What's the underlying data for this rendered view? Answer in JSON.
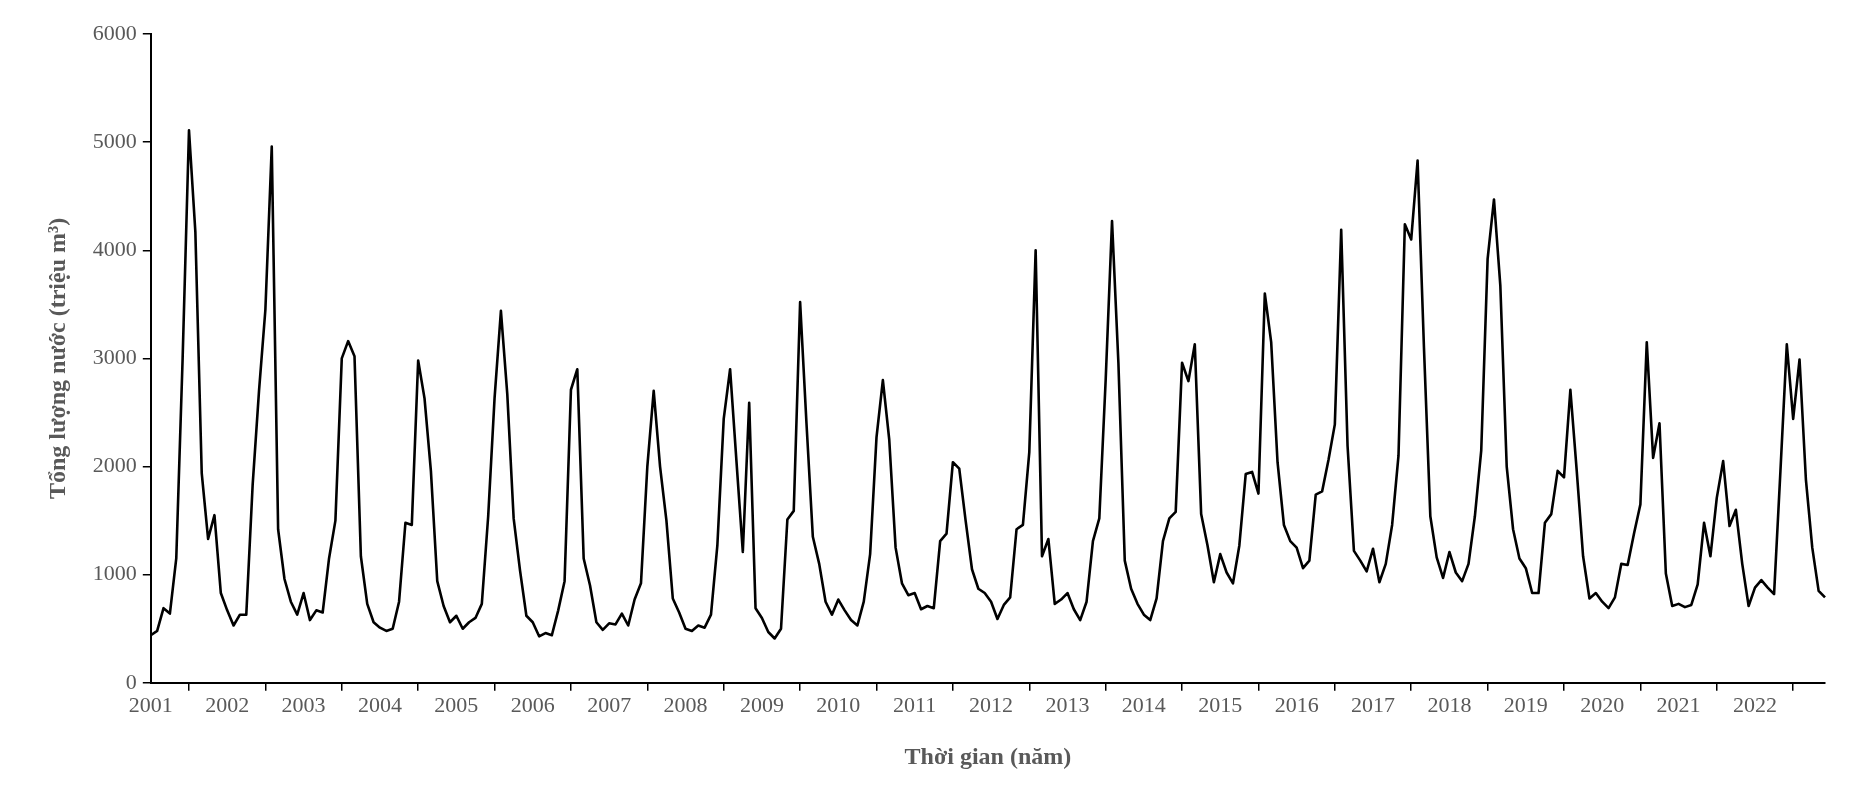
{
  "chart_data": {
    "type": "line",
    "xlabel": "Thời gian (năm)",
    "ylabel": "Tổng lượng nước (triệu m³)",
    "categories": [
      "2001",
      null,
      null,
      null,
      null,
      null,
      null,
      null,
      null,
      null,
      null,
      null,
      "2002",
      null,
      null,
      null,
      null,
      null,
      null,
      null,
      null,
      null,
      null,
      null,
      "2003",
      null,
      null,
      null,
      null,
      null,
      null,
      null,
      null,
      null,
      null,
      null,
      "2004",
      null,
      null,
      null,
      null,
      null,
      null,
      null,
      null,
      null,
      null,
      null,
      "2005",
      null,
      null,
      null,
      null,
      null,
      null,
      null,
      null,
      null,
      null,
      null,
      "2006",
      null,
      null,
      null,
      null,
      null,
      null,
      null,
      null,
      null,
      null,
      null,
      "2007",
      null,
      null,
      null,
      null,
      null,
      null,
      null,
      null,
      null,
      null,
      null,
      "2008",
      null,
      null,
      null,
      null,
      null,
      null,
      null,
      null,
      null,
      null,
      null,
      "2009",
      null,
      null,
      null,
      null,
      null,
      null,
      null,
      null,
      null,
      null,
      null,
      "2010",
      null,
      null,
      null,
      null,
      null,
      null,
      null,
      null,
      null,
      null,
      null,
      "2011",
      null,
      null,
      null,
      null,
      null,
      null,
      null,
      null,
      null,
      null,
      null,
      "2012",
      null,
      null,
      null,
      null,
      null,
      null,
      null,
      null,
      null,
      null,
      null,
      "2013",
      null,
      null,
      null,
      null,
      null,
      null,
      null,
      null,
      null,
      null,
      null,
      "2014",
      null,
      null,
      null,
      null,
      null,
      null,
      null,
      null,
      null,
      null,
      null,
      "2015",
      null,
      null,
      null,
      null,
      null,
      null,
      null,
      null,
      null,
      null,
      null,
      "2016",
      null,
      null,
      null,
      null,
      null,
      null,
      null,
      null,
      null,
      null,
      null,
      "2017",
      null,
      null,
      null,
      null,
      null,
      null,
      null,
      null,
      null,
      null,
      null,
      "2018",
      null,
      null,
      null,
      null,
      null,
      null,
      null,
      null,
      null,
      null,
      null,
      "2019",
      null,
      null,
      null,
      null,
      null,
      null,
      null,
      null,
      null,
      null,
      null,
      "2020",
      null,
      null,
      null,
      null,
      null,
      null,
      null,
      null,
      null,
      null,
      null,
      "2021",
      null,
      null,
      null,
      null,
      null,
      null,
      null,
      null,
      null,
      null,
      null,
      "2022",
      null,
      null,
      null,
      null,
      null,
      null,
      null,
      null,
      null,
      null,
      null
    ],
    "series": [
      {
        "color": "#000000",
        "values": [
          440,
          480,
          690,
          640,
          1150,
          3000,
          5110,
          4170,
          1940,
          1330,
          1550,
          830,
          670,
          530,
          630,
          630,
          1830,
          2700,
          3450,
          4960,
          1420,
          960,
          750,
          630,
          830,
          580,
          670,
          650,
          1150,
          1500,
          3000,
          3160,
          3020,
          1170,
          730,
          560,
          510,
          480,
          500,
          750,
          1480,
          1460,
          2980,
          2630,
          1960,
          940,
          710,
          560,
          620,
          500,
          560,
          600,
          730,
          1540,
          2630,
          3440,
          2670,
          1520,
          1040,
          620,
          560,
          430,
          460,
          440,
          670,
          940,
          2710,
          2900,
          1150,
          900,
          560,
          490,
          550,
          540,
          640,
          530,
          770,
          920,
          2000,
          2700,
          2000,
          1500,
          780,
          650,
          500,
          480,
          530,
          510,
          630,
          1270,
          2440,
          2900,
          2050,
          1210,
          2590,
          690,
          600,
          470,
          410,
          500,
          1510,
          1590,
          3520,
          2400,
          1350,
          1100,
          750,
          630,
          770,
          670,
          580,
          530,
          750,
          1190,
          2270,
          2800,
          2250,
          1250,
          920,
          810,
          830,
          680,
          710,
          690,
          1310,
          1380,
          2040,
          1980,
          1500,
          1050,
          870,
          830,
          750,
          590,
          720,
          790,
          1420,
          1460,
          2130,
          4000,
          1170,
          1330,
          730,
          770,
          830,
          680,
          580,
          750,
          1310,
          1520,
          2800,
          4270,
          2960,
          1130,
          870,
          730,
          630,
          580,
          780,
          1310,
          1520,
          1580,
          2960,
          2790,
          3130,
          1560,
          1270,
          930,
          1190,
          1020,
          920,
          1270,
          1930,
          1950,
          1750,
          3600,
          3150,
          2040,
          1460,
          1310,
          1250,
          1060,
          1130,
          1740,
          1770,
          2060,
          2390,
          4190,
          2190,
          1220,
          1130,
          1030,
          1240,
          930,
          1100,
          1460,
          2100,
          4240,
          4100,
          4830,
          3100,
          1540,
          1160,
          970,
          1210,
          1020,
          940,
          1100,
          1540,
          2150,
          3920,
          4470,
          3670,
          2000,
          1420,
          1150,
          1060,
          830,
          830,
          1480,
          1560,
          1960,
          1900,
          2710,
          1960,
          1170,
          780,
          830,
          750,
          690,
          790,
          1100,
          1090,
          1380,
          1650,
          3150,
          2080,
          2400,
          1010,
          710,
          730,
          700,
          720,
          910,
          1480,
          1170,
          1710,
          2050,
          1450,
          1600,
          1100,
          710,
          880,
          950,
          880,
          820,
          1960,
          3130,
          2440,
          2990,
          1880,
          1250,
          850,
          790
        ]
      }
    ],
    "ylim": [
      0,
      6000
    ],
    "yticks": [
      0,
      1000,
      2000,
      3000,
      4000,
      5000,
      6000
    ],
    "legend": false,
    "marker": "none",
    "line_style": "solid"
  }
}
